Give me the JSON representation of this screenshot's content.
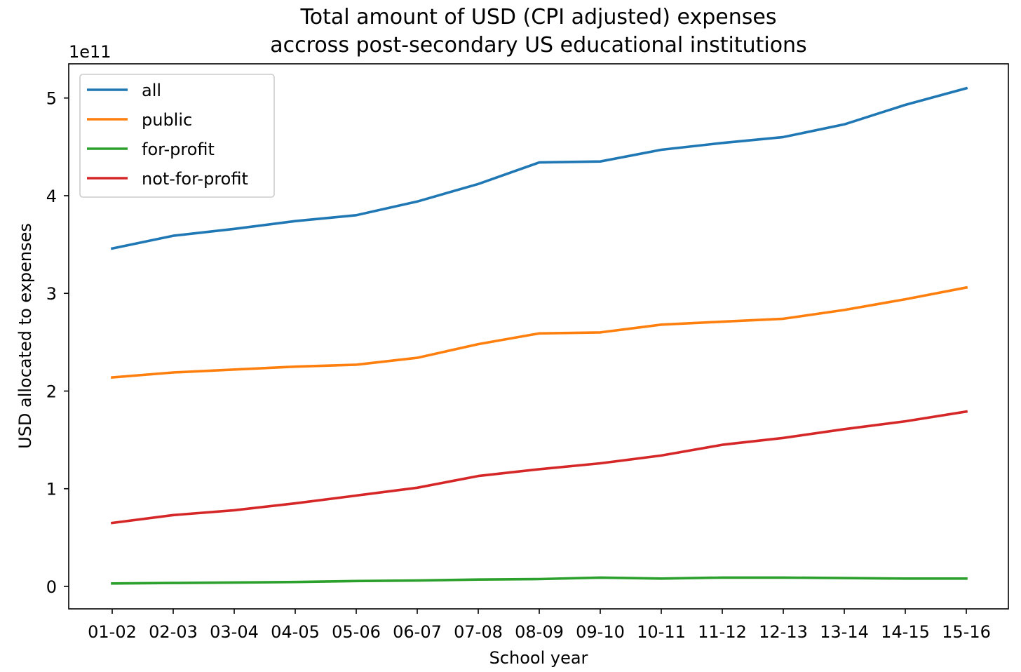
{
  "chart_data": {
    "type": "line",
    "title": "Total amount of USD (CPI adjusted) expenses\naccross post-secondary US educational institutions",
    "xlabel": "School year",
    "ylabel": "USD allocated to expenses",
    "y_offset_label": "1e11",
    "categories": [
      "01-02",
      "02-03",
      "03-04",
      "04-05",
      "05-06",
      "06-07",
      "07-08",
      "08-09",
      "09-10",
      "10-11",
      "11-12",
      "12-13",
      "13-14",
      "14-15",
      "15-16"
    ],
    "y_ticks": [
      0,
      1,
      2,
      3,
      4,
      5
    ],
    "y_tick_labels": [
      "0",
      "1",
      "2",
      "3",
      "4",
      "5"
    ],
    "ylim": [
      -0.23,
      5.35
    ],
    "y_scale_factor": 100000000000,
    "grid": false,
    "legend_position": "top-left",
    "series": [
      {
        "name": "all",
        "color": "#1f77b4",
        "values": [
          3.46,
          3.59,
          3.66,
          3.74,
          3.8,
          3.94,
          4.12,
          4.34,
          4.35,
          4.47,
          4.54,
          4.6,
          4.73,
          4.93,
          5.1
        ]
      },
      {
        "name": "public",
        "color": "#ff7f0e",
        "values": [
          2.14,
          2.19,
          2.22,
          2.25,
          2.27,
          2.34,
          2.48,
          2.59,
          2.6,
          2.68,
          2.71,
          2.74,
          2.83,
          2.94,
          3.06
        ]
      },
      {
        "name": "for-profit",
        "color": "#2ca02c",
        "values": [
          0.03,
          0.035,
          0.04,
          0.045,
          0.055,
          0.06,
          0.07,
          0.075,
          0.09,
          0.08,
          0.09,
          0.09,
          0.085,
          0.08,
          0.08
        ]
      },
      {
        "name": "not-for-profit",
        "color": "#d62728",
        "values": [
          0.65,
          0.73,
          0.78,
          0.85,
          0.93,
          1.01,
          1.13,
          1.2,
          1.26,
          1.34,
          1.45,
          1.52,
          1.61,
          1.69,
          1.79
        ]
      }
    ]
  }
}
